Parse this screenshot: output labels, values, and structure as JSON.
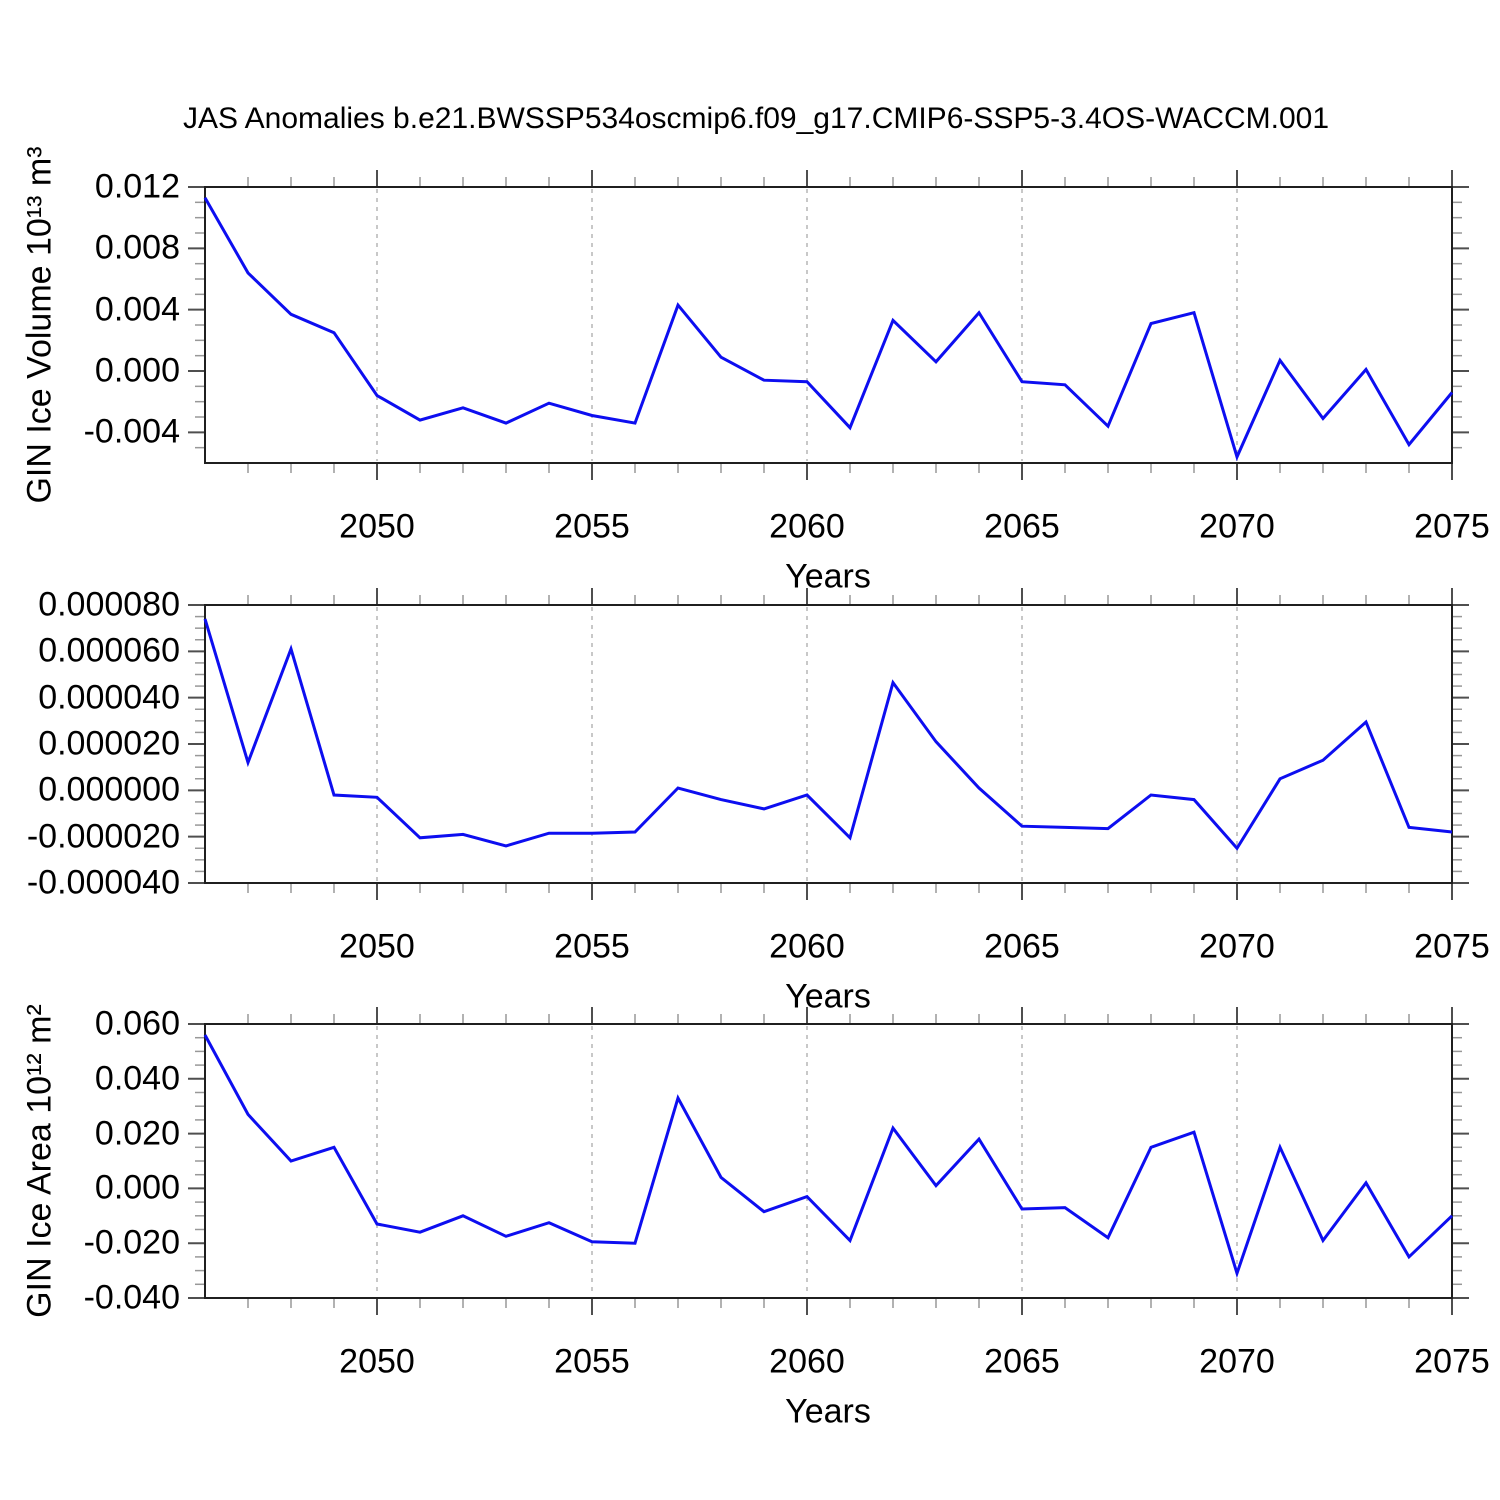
{
  "title": "JAS Anomalies b.e21.BWSSP534oscmip6.f09_g17.CMIP6-SSP5-3.4OS-WACCM.001",
  "xlabel": "Years",
  "line_color": "#0d0ef0",
  "grid_color": "#b5b5b5",
  "axis_color": "#1f1f1f",
  "major_tick_color": "#4f4f4f",
  "minor_tick_color": "#989898",
  "years": [
    2046,
    2047,
    2048,
    2049,
    2050,
    2051,
    2052,
    2053,
    2054,
    2055,
    2056,
    2057,
    2058,
    2059,
    2060,
    2061,
    2062,
    2063,
    2064,
    2065,
    2066,
    2067,
    2068,
    2069,
    2070,
    2071,
    2072,
    2073,
    2074,
    2075
  ],
  "xticks": {
    "values": [
      2050,
      2055,
      2060,
      2065,
      2070,
      2075
    ],
    "labels": [
      "2050",
      "2055",
      "2060",
      "2065",
      "2070",
      "2075"
    ],
    "grid_at": [
      2050,
      2055,
      2060,
      2065,
      2070
    ],
    "minor_step_years": 1
  },
  "chart_data": [
    {
      "type": "line",
      "ylabel": "GIN Ice Volume 10¹³ m³",
      "legend": "none",
      "grid": "vertical-dashed-at-major-xticks",
      "xlim": [
        2046,
        2075
      ],
      "ylim": [
        -0.006,
        0.012
      ],
      "yticks": {
        "values": [
          0.012,
          0.008,
          0.004,
          0.0,
          -0.004
        ],
        "labels": [
          "0.012",
          "0.008",
          "0.004",
          "0.000",
          "-0.004"
        ],
        "minor_step": 0.001
      },
      "values": [
        0.0113,
        0.0064,
        0.0037,
        0.0025,
        -0.0016,
        -0.0032,
        -0.0024,
        -0.0034,
        -0.0021,
        -0.0029,
        -0.0034,
        0.0043,
        0.0009,
        -0.0006,
        -0.0007,
        -0.0037,
        0.0033,
        0.0006,
        0.0038,
        -0.0007,
        -0.0009,
        -0.0036,
        0.0031,
        0.0038,
        -0.0056,
        0.0007,
        -0.0031,
        0.0001,
        -0.0048,
        -0.0014
      ]
    },
    {
      "type": "line",
      "ylabel": "",
      "legend": "none",
      "grid": "vertical-dashed-at-major-xticks",
      "xlim": [
        2046,
        2075
      ],
      "ylim": [
        -4e-05,
        8e-05
      ],
      "yticks": {
        "values": [
          8e-05,
          6e-05,
          4e-05,
          2e-05,
          0.0,
          -2e-05,
          -4e-05
        ],
        "labels": [
          "0.000080",
          "0.000060",
          "0.000040",
          "0.000020",
          "0.000000",
          "-0.000020",
          "-0.000040"
        ],
        "minor_step": 5e-06
      },
      "values": [
        7.4e-05,
        1.2e-05,
        6.1e-05,
        -2e-06,
        -3e-06,
        -2.05e-05,
        -1.9e-05,
        -2.4e-05,
        -1.85e-05,
        -1.85e-05,
        -1.8e-05,
        1e-06,
        -4e-06,
        -8e-06,
        -2e-06,
        -2.05e-05,
        4.65e-05,
        2.1e-05,
        1e-06,
        -1.55e-05,
        -1.6e-05,
        -1.65e-05,
        -2e-06,
        -4e-06,
        -2.5e-05,
        5e-06,
        1.3e-05,
        2.95e-05,
        -1.6e-05,
        -1.8e-05
      ]
    },
    {
      "type": "line",
      "ylabel": "GIN Ice Area 10¹² m²",
      "legend": "none",
      "grid": "vertical-dashed-at-major-xticks",
      "xlim": [
        2046,
        2075
      ],
      "ylim": [
        -0.04,
        0.06
      ],
      "yticks": {
        "values": [
          0.06,
          0.04,
          0.02,
          0.0,
          -0.02,
          -0.04
        ],
        "labels": [
          "0.060",
          "0.040",
          "0.020",
          "0.000",
          "-0.020",
          "-0.040"
        ],
        "minor_step": 0.005
      },
      "values": [
        0.056,
        0.027,
        0.01,
        0.015,
        -0.013,
        -0.016,
        -0.01,
        -0.0175,
        -0.0125,
        -0.0195,
        -0.02,
        0.033,
        0.004,
        -0.0085,
        -0.003,
        -0.019,
        0.022,
        0.001,
        0.018,
        -0.0075,
        -0.007,
        -0.018,
        0.015,
        0.0205,
        -0.031,
        0.015,
        -0.019,
        0.002,
        -0.025,
        -0.01
      ]
    }
  ]
}
